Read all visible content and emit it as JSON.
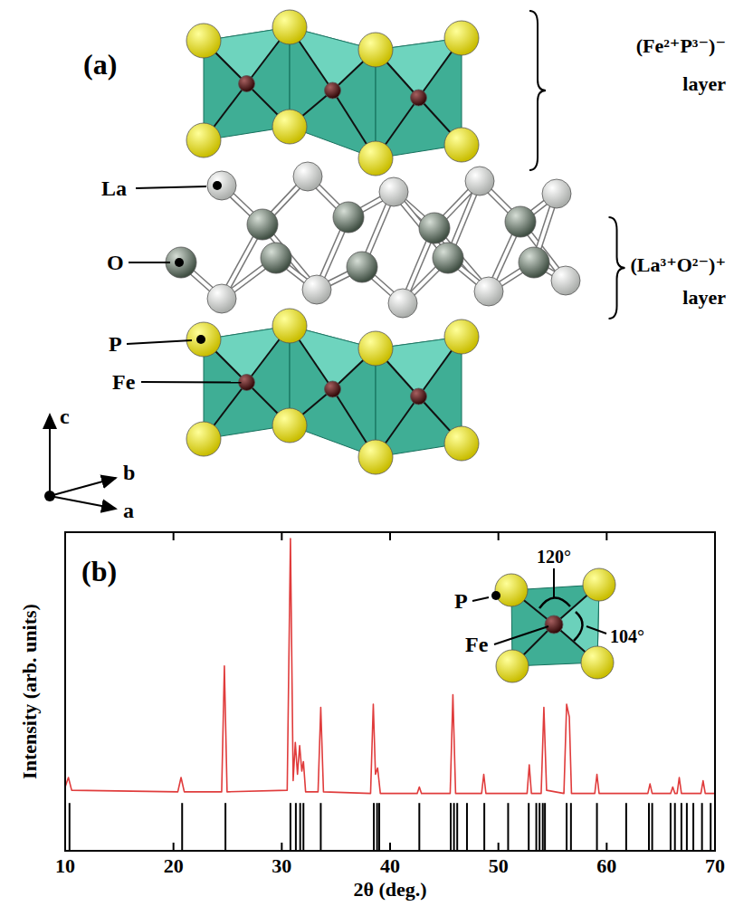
{
  "diagram": {
    "panel_label": "(a)",
    "layers": [
      {
        "label": "(Fe²⁺P³⁻)⁻",
        "sublabel": "layer"
      },
      {
        "label": "(La³⁺O²⁻)⁺",
        "sublabel": "layer"
      }
    ],
    "atom_labels": [
      "La",
      "O",
      "P",
      "Fe"
    ],
    "axes": [
      "c",
      "b",
      "a"
    ]
  },
  "chart_data": {
    "type": "line",
    "panel_label": "(b)",
    "x_label": "2θ (deg.)",
    "y_label": "Intensity (arb. units)",
    "xlim": [
      10,
      70
    ],
    "xticks": [
      10,
      20,
      30,
      40,
      50,
      60,
      70
    ],
    "ylim": [
      0,
      100
    ],
    "tick_labels": "x",
    "series": [
      {
        "type": "line",
        "color": "#e03c3c",
        "x": [
          10.0,
          10.3,
          10.6,
          20.4,
          20.7,
          21.0,
          24.45,
          24.7,
          24.95,
          30.5,
          30.8,
          31.05,
          31.25,
          31.45,
          31.65,
          31.85,
          32.0,
          32.2,
          33.35,
          33.6,
          33.85,
          38.2,
          38.45,
          38.65,
          38.85,
          39.1,
          42.5,
          42.7,
          42.9,
          45.55,
          45.8,
          46.05,
          48.45,
          48.65,
          48.85,
          52.65,
          52.85,
          53.05,
          53.95,
          54.2,
          54.45,
          56.05,
          56.3,
          56.55,
          56.75,
          58.9,
          59.1,
          59.3,
          63.8,
          64.0,
          64.2,
          65.9,
          66.1,
          66.3,
          66.5,
          66.7,
          66.9,
          68.7,
          68.9,
          69.1,
          70.0
        ],
        "values": [
          20,
          23,
          19,
          18.5,
          23,
          18.5,
          18.5,
          58,
          18.5,
          19,
          98,
          22,
          34,
          24,
          33,
          25,
          28,
          18.5,
          18.5,
          45,
          18.5,
          18,
          46,
          24,
          26,
          18,
          18,
          20,
          18,
          18,
          49,
          18,
          18,
          24,
          18,
          18,
          27,
          18,
          18,
          45,
          19,
          18,
          46,
          42,
          18,
          18,
          24,
          18,
          18,
          21,
          18,
          18,
          20,
          18,
          18,
          23,
          18,
          18,
          22,
          18,
          18
        ]
      },
      {
        "type": "stick",
        "color": "#000000",
        "x": [
          10.4,
          20.8,
          24.8,
          30.8,
          31.3,
          31.7,
          32.0,
          33.6,
          38.5,
          38.8,
          39.0,
          42.7,
          45.6,
          45.9,
          46.2,
          47.1,
          48.7,
          50.9,
          52.8,
          53.5,
          53.8,
          54.1,
          54.3,
          56.3,
          56.7,
          59.1,
          61.8,
          63.9,
          64.2,
          65.9,
          66.3,
          66.9,
          67.4,
          68.0,
          68.8,
          69.6
        ],
        "values": [
          15,
          15,
          15,
          15,
          15,
          15,
          15,
          15,
          15,
          15,
          15,
          15,
          15,
          15,
          15,
          15,
          15,
          15,
          15,
          15,
          15,
          15,
          15,
          15,
          15,
          15,
          15,
          15,
          15,
          15,
          15,
          15,
          15,
          15,
          15,
          15
        ]
      }
    ],
    "annotations": [
      {
        "text": "P"
      },
      {
        "text": "Fe"
      },
      {
        "text": "120°"
      },
      {
        "text": "104°"
      }
    ]
  }
}
